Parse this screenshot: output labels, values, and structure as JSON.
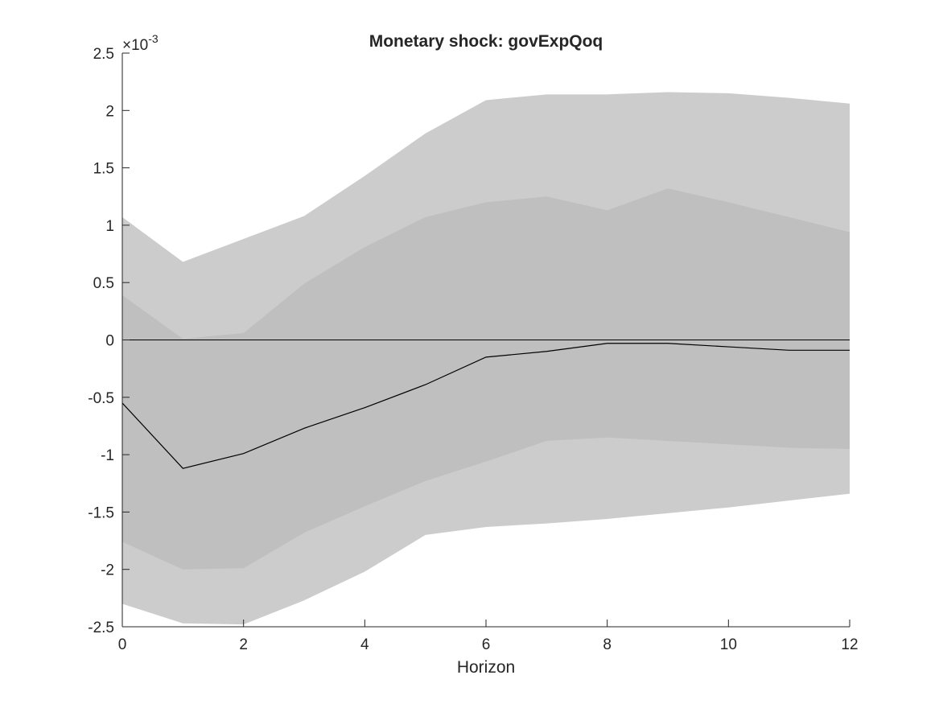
{
  "chart_data": {
    "type": "area",
    "title": "Monetary shock: govExpQoq",
    "xlabel": "Horizon",
    "ylabel": "",
    "y_exponent_label": "×10",
    "y_exponent_power": "-3",
    "xlim": [
      0,
      12
    ],
    "ylim": [
      -2.5,
      2.5
    ],
    "x_ticks": [
      0,
      2,
      4,
      6,
      8,
      10,
      12
    ],
    "y_ticks": [
      -2.5,
      -2,
      -1.5,
      -1,
      -0.5,
      0,
      0.5,
      1,
      1.5,
      2,
      2.5
    ],
    "y_tick_labels": [
      "-2.5",
      "-2",
      "-1.5",
      "-1",
      "-0.5",
      "0",
      "0.5",
      "1",
      "1.5",
      "2",
      "2.5"
    ],
    "x_tick_labels": [
      "0",
      "2",
      "4",
      "6",
      "8",
      "10",
      "12"
    ],
    "grid": false,
    "x": [
      0,
      1,
      2,
      3,
      4,
      5,
      6,
      7,
      8,
      9,
      10,
      11,
      12
    ],
    "bands": [
      {
        "level": "outer",
        "color": "#cccccc",
        "upper": [
          1.07,
          0.68,
          0.88,
          1.08,
          1.43,
          1.8,
          2.09,
          2.14,
          2.14,
          2.16,
          2.15,
          2.11,
          2.06
        ],
        "lower": [
          -2.3,
          -2.47,
          -2.48,
          -2.27,
          -2.02,
          -1.7,
          -1.63,
          -1.6,
          -1.56,
          -1.51,
          -1.46,
          -1.4,
          -1.34
        ]
      },
      {
        "level": "inner",
        "color": "#bfbfbf",
        "upper": [
          0.39,
          0.01,
          0.06,
          0.49,
          0.81,
          1.07,
          1.2,
          1.25,
          1.13,
          1.32,
          1.2,
          1.07,
          0.94
        ],
        "lower": [
          -1.76,
          -2.0,
          -1.99,
          -1.68,
          -1.45,
          -1.23,
          -1.06,
          -0.88,
          -0.85,
          -0.88,
          -0.91,
          -0.94,
          -0.95
        ]
      }
    ],
    "series": [
      {
        "values": [
          -0.55,
          -1.12,
          -0.99,
          -0.77,
          -0.59,
          -0.39,
          -0.15,
          -0.1,
          -0.03,
          -0.03,
          -0.06,
          -0.09,
          -0.09
        ],
        "color": "#000000"
      }
    ],
    "reference_line": {
      "y": 0,
      "color": "#000000"
    }
  }
}
